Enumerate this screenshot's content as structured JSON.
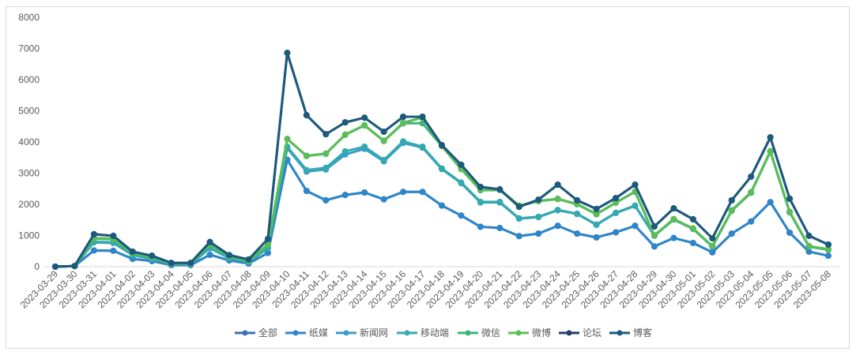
{
  "chart_data": {
    "type": "line",
    "title": "",
    "xlabel": "",
    "ylabel": "",
    "ylim": [
      0,
      8000
    ],
    "yticks": [
      "0",
      "1000",
      "2000",
      "3000",
      "4000",
      "5000",
      "6000",
      "7000",
      "8000"
    ],
    "legend_position": "bottom",
    "categories": [
      "2023-03-29",
      "2023-03-30",
      "2023-03-31",
      "2023-04-01",
      "2023-04-02",
      "2023-04-03",
      "2023-04-04",
      "2023-04-05",
      "2023-04-06",
      "2023-04-07",
      "2023-04-08",
      "2023-04-09",
      "2023-04-10",
      "2023-04-11",
      "2023-04-12",
      "2023-04-13",
      "2023-04-14",
      "2023-04-15",
      "2023-04-16",
      "2023-04-17",
      "2023-04-18",
      "2023-04-19",
      "2023-04-20",
      "2023-04-21",
      "2023-04-22",
      "2023-04-23",
      "2023-04-24",
      "2023-04-25",
      "2023-04-26",
      "2023-04-27",
      "2023-04-28",
      "2023-04-29",
      "2023-04-30",
      "2023-05-01",
      "2023-05-02",
      "2023-05-03",
      "2023-05-04",
      "2023-05-05",
      "2023-05-06",
      "2023-05-07",
      "2023-05-08"
    ],
    "series": [
      {
        "name": "全部",
        "color": "#3f6db3",
        "values": [
          0,
          20,
          520,
          510,
          250,
          180,
          50,
          50,
          380,
          200,
          100,
          440,
          3430,
          2430,
          2130,
          2300,
          2380,
          2160,
          2400,
          2400,
          1960,
          1640,
          1280,
          1240,
          980,
          1060,
          1310,
          1060,
          940,
          1100,
          1310,
          650,
          920,
          760,
          460,
          1060,
          1450,
          2070,
          1090,
          480,
          350
        ]
      },
      {
        "name": "纸媒",
        "color": "#2e86c9",
        "values": [
          0,
          20,
          520,
          510,
          250,
          180,
          50,
          50,
          380,
          200,
          100,
          440,
          3430,
          2430,
          2130,
          2300,
          2380,
          2160,
          2400,
          2400,
          1960,
          1640,
          1280,
          1240,
          980,
          1060,
          1310,
          1060,
          940,
          1100,
          1310,
          650,
          920,
          760,
          460,
          1060,
          1450,
          2070,
          1090,
          480,
          350
        ]
      },
      {
        "name": "新闻网",
        "color": "#389dc8",
        "values": [
          0,
          20,
          780,
          760,
          370,
          250,
          80,
          80,
          590,
          270,
          150,
          590,
          3800,
          3050,
          3120,
          3600,
          3780,
          3380,
          3970,
          3820,
          3130,
          2680,
          2060,
          2060,
          1540,
          1590,
          1810,
          1690,
          1340,
          1720,
          1950,
          990,
          1510,
          1210,
          640,
          1790,
          2370,
          3690,
          1740,
          640,
          540
        ]
      },
      {
        "name": "移动端",
        "color": "#33aaae",
        "values": [
          0,
          20,
          800,
          780,
          380,
          260,
          80,
          80,
          600,
          280,
          150,
          600,
          3850,
          3100,
          3170,
          3700,
          3850,
          3420,
          4020,
          3850,
          3150,
          2700,
          2080,
          2080,
          1550,
          1600,
          1820,
          1700,
          1350,
          1730,
          1960,
          1000,
          1520,
          1220,
          650,
          1800,
          2380,
          3700,
          1750,
          650,
          550
        ]
      },
      {
        "name": "微信",
        "color": "#3bb57c",
        "values": [
          0,
          20,
          900,
          880,
          420,
          300,
          100,
          100,
          700,
          330,
          180,
          700,
          4100,
          3550,
          3620,
          4230,
          4530,
          4030,
          4600,
          4600,
          3870,
          3130,
          2450,
          2460,
          1950,
          2100,
          2170,
          2000,
          1680,
          2050,
          2400,
          1000,
          1520,
          1220,
          650,
          1800,
          2380,
          3700,
          1750,
          650,
          550
        ]
      },
      {
        "name": "微博",
        "color": "#5cbd56",
        "values": [
          0,
          20,
          920,
          900,
          430,
          310,
          100,
          100,
          720,
          340,
          190,
          720,
          4100,
          3560,
          3630,
          4240,
          4540,
          4040,
          4620,
          4780,
          3880,
          3140,
          2460,
          2470,
          1960,
          2110,
          2180,
          2010,
          1690,
          2060,
          2410,
          1010,
          1530,
          1230,
          660,
          1810,
          2390,
          3710,
          1760,
          660,
          560
        ]
      },
      {
        "name": "论坛",
        "color": "#1f3f66",
        "values": [
          0,
          20,
          1040,
          990,
          480,
          350,
          120,
          120,
          790,
          370,
          230,
          890,
          6860,
          4860,
          4250,
          4630,
          4780,
          4330,
          4810,
          4810,
          3900,
          3270,
          2560,
          2480,
          1920,
          2150,
          2630,
          2130,
          1850,
          2200,
          2630,
          1290,
          1870,
          1520,
          910,
          2130,
          2890,
          4150,
          2180,
          990,
          710
        ]
      },
      {
        "name": "博客",
        "color": "#1c5a7d",
        "values": [
          0,
          20,
          1040,
          990,
          480,
          350,
          120,
          120,
          790,
          370,
          230,
          890,
          6860,
          4860,
          4250,
          4630,
          4780,
          4330,
          4810,
          4810,
          3900,
          3270,
          2560,
          2480,
          1920,
          2150,
          2630,
          2130,
          1850,
          2200,
          2630,
          1290,
          1870,
          1520,
          910,
          2130,
          2890,
          4150,
          2180,
          990,
          710
        ]
      }
    ]
  }
}
